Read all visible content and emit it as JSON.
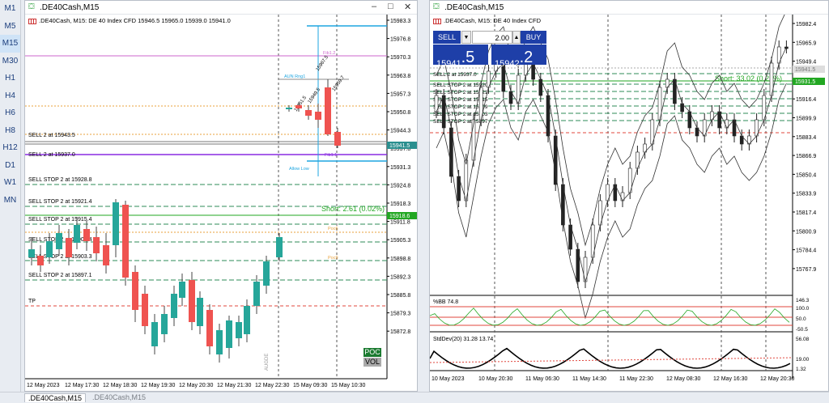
{
  "sidebar": {
    "timeframes": [
      "M1",
      "M5",
      "M15",
      "M30",
      "H1",
      "H4",
      "H6",
      "H8",
      "H12",
      "D1",
      "W1",
      "MN"
    ],
    "active": "M15"
  },
  "left_window": {
    "title": ".DE40Cash,M15",
    "info": ".DE40Cash, M15:  DE 40 Index CFD   15946.5 15965.0 15939.0 15941.0",
    "price_labels": [
      "15983.3",
      "15976.8",
      "15970.3",
      "15963.8",
      "15957.3",
      "15950.8",
      "15944.3",
      "15937.8",
      "15931.3",
      "15924.8",
      "15918.3",
      "15911.8",
      "15905.3",
      "15898.8",
      "15892.3",
      "15885.8",
      "15879.3",
      "15872.8"
    ],
    "current_price": "15941.5",
    "short_price": "15918.6",
    "time_labels": [
      "12 May 2023",
      "12 May 17:30",
      "12 May 18:30",
      "12 May 19:30",
      "12 May 20:30",
      "12 May 21:30",
      "12 May 22:30",
      "15 May 09:30",
      "15 May 10:30"
    ],
    "order_labels": [
      "SELL 2 at 15943.5",
      "SELL 2 at 15937.0",
      "SELL STOP 2 at 15928.8",
      "SELL STOP 2 at 15921.4",
      "SELL STOP 2 at 15915.4",
      "SELL STOP 2 at 15909.4",
      "SELL STOP 2 at 15903.3",
      "SELL STOP 2 at 15897.1",
      "TP"
    ],
    "short_text": "Short: 2.61  (0.02%)",
    "fib_labels": [
      "Fib1.2",
      "AUN Rng1",
      "Fib1.1",
      "Allow Low",
      "Poc6",
      "Poc9"
    ],
    "diag_labels": [
      "15951.5",
      "15949.5",
      "15967.5",
      "15959.7"
    ],
    "vertical_note": "AUGDE",
    "poc_button": "POC",
    "vol_button": "VOL"
  },
  "right_window": {
    "title": ".DE40Cash,M15",
    "info": ".DE40Cash, M15:  DE 40 Index CFD",
    "sell_label": "SELL",
    "buy_label": "BUY",
    "lot_value": "2.00",
    "sell_price_big": "15941",
    "sell_price_small": ".5",
    "buy_price_big": "15942",
    "buy_price_small": ".2",
    "price_labels": [
      "15982.4",
      "15965.9",
      "15949.4",
      "15932.9",
      "15916.4",
      "15899.9",
      "15883.4",
      "15866.9",
      "15850.4",
      "15833.9",
      "15817.4",
      "15800.9",
      "15784.4",
      "15767.9"
    ],
    "pale_price": "15941.5",
    "current_price": "15931.5",
    "short_text": "Short: 33.02  (0.21%)",
    "order_labels": [
      "SELL 2 at 15937.0",
      "SELL STOP 2 at 15920",
      "SELL STOP 2 at 15921",
      "SELL STOP 2 at 15915",
      "SELL STOP 2 at 15909",
      "SELL STOP 2 at 15903",
      "SELL STOP 2 at 15897"
    ],
    "bb_label": "%BB 74.8",
    "bb_scale": [
      "146.3",
      "100.0",
      "50.0",
      "-50.5"
    ],
    "stddev_label": "StdDev(20) 31.28 13.74",
    "stddev_scale": [
      "56.08",
      "19.00",
      "1.32"
    ],
    "time_labels": [
      "10 May 2023",
      "10 May 20:30",
      "11 May 06:30",
      "11 May 14:30",
      "11 May 22:30",
      "12 May 08:30",
      "12 May 16:30",
      "12 May 20:30"
    ]
  },
  "tabs": [
    ".DE40Cash,M15",
    ".DE40Cash,M15"
  ],
  "colors": {
    "bull": "#26a69a",
    "bear": "#ef5350",
    "accent": "#1e3fa8",
    "short_green": "#22a722",
    "order_red": "#e0473e"
  }
}
